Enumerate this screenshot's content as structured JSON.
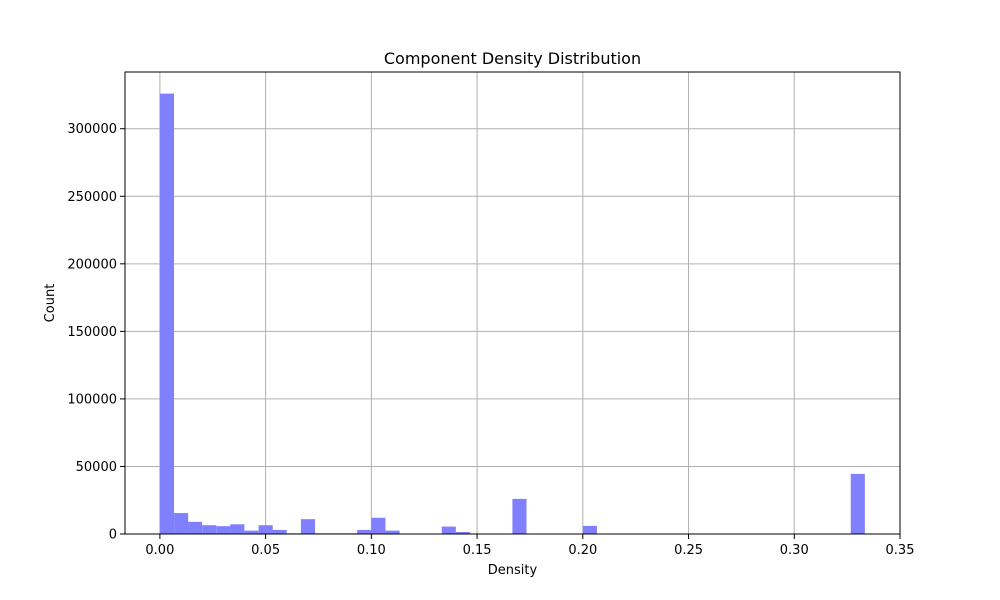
{
  "chart_data": {
    "type": "bar",
    "title": "Component Density Distribution",
    "xlabel": "Density",
    "ylabel": "Count",
    "xlim": [
      -0.0165,
      0.35
    ],
    "ylim": [
      0,
      342000
    ],
    "x_ticks": [
      0.0,
      0.05,
      0.1,
      0.15,
      0.2,
      0.25,
      0.3,
      0.35
    ],
    "x_tick_labels": [
      "0.00",
      "0.05",
      "0.10",
      "0.15",
      "0.20",
      "0.25",
      "0.30",
      "0.35"
    ],
    "y_ticks": [
      0,
      50000,
      100000,
      150000,
      200000,
      250000,
      300000
    ],
    "y_tick_labels": [
      "0",
      "50000",
      "100000",
      "150000",
      "200000",
      "250000",
      "300000"
    ],
    "grid": true,
    "bar_color": "#8080ff",
    "bin_width": 0.00667,
    "bins": [
      {
        "x": 0.0,
        "count": 326000
      },
      {
        "x": 0.0067,
        "count": 15500
      },
      {
        "x": 0.0133,
        "count": 9000
      },
      {
        "x": 0.02,
        "count": 6500
      },
      {
        "x": 0.0267,
        "count": 5800
      },
      {
        "x": 0.0333,
        "count": 7200
      },
      {
        "x": 0.04,
        "count": 2500
      },
      {
        "x": 0.0467,
        "count": 6500
      },
      {
        "x": 0.0533,
        "count": 3000
      },
      {
        "x": 0.06,
        "count": 500
      },
      {
        "x": 0.0667,
        "count": 11000
      },
      {
        "x": 0.0733,
        "count": 500
      },
      {
        "x": 0.08,
        "count": 500
      },
      {
        "x": 0.0867,
        "count": 500
      },
      {
        "x": 0.0933,
        "count": 3000
      },
      {
        "x": 0.1,
        "count": 12000
      },
      {
        "x": 0.1067,
        "count": 2500
      },
      {
        "x": 0.1133,
        "count": 200
      },
      {
        "x": 0.12,
        "count": 100
      },
      {
        "x": 0.1267,
        "count": 100
      },
      {
        "x": 0.1333,
        "count": 5500
      },
      {
        "x": 0.14,
        "count": 1500
      },
      {
        "x": 0.1467,
        "count": 100
      },
      {
        "x": 0.1533,
        "count": 100
      },
      {
        "x": 0.16,
        "count": 100
      },
      {
        "x": 0.1667,
        "count": 26000
      },
      {
        "x": 0.1733,
        "count": 100
      },
      {
        "x": 0.18,
        "count": 100
      },
      {
        "x": 0.1867,
        "count": 100
      },
      {
        "x": 0.1933,
        "count": 100
      },
      {
        "x": 0.2,
        "count": 6000
      },
      {
        "x": 0.3267,
        "count": 44500
      }
    ]
  }
}
